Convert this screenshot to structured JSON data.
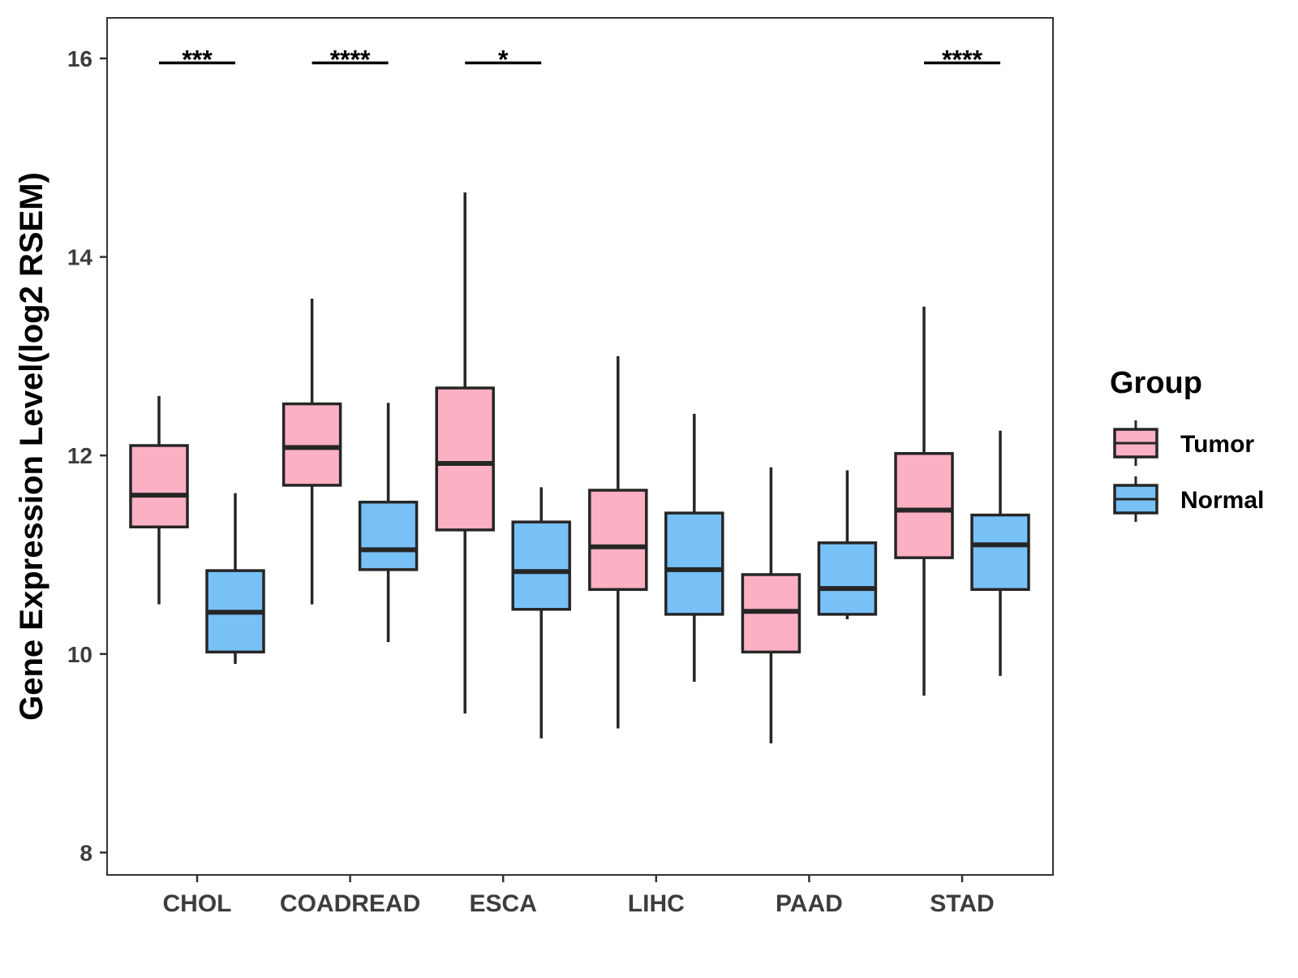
{
  "chart_data": {
    "type": "boxplot",
    "title": "",
    "xlabel": "",
    "ylabel": "Gene Expression Level(log2 RSEM)",
    "ylim": [
      7.8,
      16.4
    ],
    "yticks": [
      8,
      10,
      12,
      14,
      16
    ],
    "grid": false,
    "legend": {
      "title": "Group",
      "position": "right",
      "entries": [
        {
          "name": "Tumor",
          "color": "#FBB1C3"
        },
        {
          "name": "Normal",
          "color": "#78C1F7"
        }
      ]
    },
    "categories": [
      "CHOL",
      "COADREAD",
      "ESCA",
      "LIHC",
      "PAAD",
      "STAD"
    ],
    "series": [
      {
        "name": "Tumor",
        "color": "#FBB1C3",
        "boxes": [
          {
            "whisker_low": 10.5,
            "q1": 11.28,
            "median": 11.6,
            "q3": 12.1,
            "whisker_high": 12.6
          },
          {
            "whisker_low": 10.5,
            "q1": 11.7,
            "median": 12.08,
            "q3": 12.52,
            "whisker_high": 13.58
          },
          {
            "whisker_low": 9.4,
            "q1": 11.25,
            "median": 11.92,
            "q3": 12.68,
            "whisker_high": 14.65
          },
          {
            "whisker_low": 9.25,
            "q1": 10.65,
            "median": 11.08,
            "q3": 11.65,
            "whisker_high": 13.0
          },
          {
            "whisker_low": 9.1,
            "q1": 10.02,
            "median": 10.43,
            "q3": 10.8,
            "whisker_high": 11.88
          },
          {
            "whisker_low": 9.58,
            "q1": 10.97,
            "median": 11.45,
            "q3": 12.02,
            "whisker_high": 13.5
          }
        ]
      },
      {
        "name": "Normal",
        "color": "#78C1F7",
        "boxes": [
          {
            "whisker_low": 9.9,
            "q1": 10.02,
            "median": 10.42,
            "q3": 10.84,
            "whisker_high": 11.62
          },
          {
            "whisker_low": 10.12,
            "q1": 10.85,
            "median": 11.05,
            "q3": 11.53,
            "whisker_high": 12.53
          },
          {
            "whisker_low": 9.15,
            "q1": 10.45,
            "median": 10.83,
            "q3": 11.33,
            "whisker_high": 11.68
          },
          {
            "whisker_low": 9.72,
            "q1": 10.4,
            "median": 10.85,
            "q3": 11.42,
            "whisker_high": 12.42
          },
          {
            "whisker_low": 10.35,
            "q1": 10.4,
            "median": 10.66,
            "q3": 11.12,
            "whisker_high": 11.85
          },
          {
            "whisker_low": 9.78,
            "q1": 10.65,
            "median": 11.1,
            "q3": 11.4,
            "whisker_high": 12.25
          }
        ]
      }
    ],
    "significance": [
      {
        "category": "CHOL",
        "label": "***",
        "y": 15.98
      },
      {
        "category": "COADREAD",
        "label": "****",
        "y": 15.98
      },
      {
        "category": "ESCA",
        "label": "*",
        "y": 15.98
      },
      {
        "category": "STAD",
        "label": "****",
        "y": 15.98
      }
    ]
  }
}
